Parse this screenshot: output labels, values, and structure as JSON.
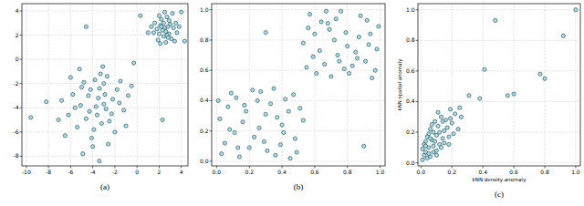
{
  "chart_data": [
    {
      "type": "scatter",
      "title": "(a)",
      "color": "#a8e0ea",
      "marker": "circle",
      "grid": true,
      "xlim": [
        -10.4,
        4.6
      ],
      "ylim": [
        -8.8,
        4.6
      ],
      "xticks": [
        -10,
        -8,
        -6,
        -4,
        -2,
        0,
        2,
        4
      ],
      "yticks": [
        -8,
        -6,
        -4,
        -2,
        0,
        2,
        4
      ],
      "x": [
        2.1,
        2.6,
        3.0,
        2.4,
        1.8,
        2.9,
        2.2,
        3.3,
        2.7,
        1.6,
        2.5,
        3.1,
        2.0,
        2.8,
        2.3,
        3.5,
        1.9,
        2.6,
        3.2,
        2.4,
        1.5,
        3.6,
        2.9,
        2.1,
        2.7,
        3.4,
        2.0,
        2.5,
        1.3,
        3.8,
        2.2,
        2.8,
        0.3,
        4.0,
        4.3,
        1.0,
        -3.5,
        -4.2,
        -2.8,
        -5.1,
        -3.0,
        -4.6,
        -2.2,
        -3.9,
        -1.8,
        -5.8,
        -3.3,
        -4.8,
        -2.5,
        -6.2,
        -1.2,
        -3.7,
        -4.1,
        -2.0,
        -6.8,
        -3.1,
        -5.4,
        -0.8,
        -4.4,
        -2.9,
        -3.6,
        -5.0,
        -1.5,
        -4.0,
        -2.6,
        -7.1,
        -3.8,
        -6.0,
        -1.0,
        -3.2,
        -4.9,
        -2.3,
        -5.6,
        -0.5,
        -3.4,
        -4.3,
        -2.7,
        -6.5,
        -1.6,
        -5.2,
        -3.0,
        -9.6,
        -4.6,
        2.3,
        -3.4,
        -0.3,
        -8.2
      ],
      "values": [
        2.8,
        2.3,
        2.9,
        1.9,
        2.5,
        2.1,
        3.3,
        2.6,
        3.5,
        3.0,
        2.6,
        1.7,
        2.1,
        2.7,
        2.4,
        3.0,
        1.6,
        1.4,
        3.8,
        3.0,
        2.2,
        2.2,
        3.2,
        1.3,
        2.0,
        1.5,
        3.6,
        3.9,
        2.7,
        2.7,
        2.7,
        1.8,
        3.6,
        3.9,
        1.5,
        2.2,
        -3.2,
        -2.5,
        -4.1,
        -3.8,
        -2.0,
        -4.9,
        -3.3,
        -5.8,
        -2.5,
        -2.9,
        -1.2,
        -1.9,
        -5.1,
        -4.6,
        -4.2,
        -3.9,
        -6.5,
        -6.0,
        -3.4,
        -0.6,
        -5.6,
        -3.0,
        -3.0,
        -2.9,
        -4.6,
        -2.3,
        -1.8,
        -7.2,
        -7.0,
        -5.0,
        -1.7,
        -1.5,
        -5.5,
        -5.3,
        -7.8,
        -4.5,
        -4.0,
        -2.2,
        -2.4,
        -4.3,
        -1.4,
        -6.3,
        -3.6,
        -0.8,
        -3.7,
        -4.8,
        2.7,
        -5.0,
        -8.4,
        -0.3,
        -3.5
      ]
    },
    {
      "type": "scatter",
      "title": "(b)",
      "color": "#a8e0ea",
      "marker": "circle",
      "grid": true,
      "xlim": [
        -0.03,
        1.03
      ],
      "ylim": [
        -0.03,
        1.04
      ],
      "xticks": [
        {
          "value": 0,
          "label": "0.0"
        },
        0.2,
        0.4,
        0.6,
        0.8,
        {
          "value": 1,
          "label": "1.0"
        }
      ],
      "yticks": [
        {
          "value": 0,
          "label": "0.0"
        },
        0.2,
        0.4,
        0.6,
        0.8,
        {
          "value": 1,
          "label": "1.0"
        }
      ],
      "x": [
        0.05,
        0.18,
        0.31,
        0.42,
        0.09,
        0.26,
        0.48,
        0.37,
        0.14,
        0.02,
        0.22,
        0.45,
        0.33,
        0.11,
        0.29,
        0.51,
        0.07,
        0.4,
        0.2,
        0.35,
        0.16,
        0.47,
        0.03,
        0.25,
        0.39,
        0.12,
        0.53,
        0.3,
        0.44,
        0.08,
        0.23,
        0.36,
        0.17,
        0.49,
        0.01,
        0.27,
        0.41,
        0.13,
        0.55,
        0.68,
        0.81,
        0.93,
        0.6,
        0.74,
        0.88,
        0.97,
        0.63,
        0.79,
        0.7,
        0.91,
        0.57,
        0.85,
        0.66,
        0.99,
        0.76,
        0.59,
        0.83,
        0.72,
        0.95,
        0.64,
        0.87,
        0.53,
        0.78,
        0.69,
        0.92,
        0.61,
        0.86,
        0.73,
        0.98,
        0.56,
        0.8,
        0.67,
        0.94,
        0.75,
        0.3,
        0.9
      ],
      "values": [
        0.12,
        0.33,
        0.07,
        0.41,
        0.45,
        0.22,
        0.15,
        0.29,
        0.03,
        0.28,
        0.47,
        0.02,
        0.38,
        0.19,
        0.13,
        0.35,
        0.36,
        0.24,
        0.09,
        0.48,
        0.26,
        0.44,
        0.05,
        0.4,
        0.11,
        0.42,
        0.27,
        0.31,
        0.33,
        0.21,
        0.16,
        0.04,
        0.37,
        0.06,
        0.4,
        0.46,
        0.19,
        0.09,
        0.62,
        0.91,
        0.58,
        0.77,
        0.84,
        0.7,
        0.96,
        0.6,
        0.73,
        0.85,
        0.56,
        0.66,
        0.97,
        0.72,
        0.64,
        0.89,
        0.99,
        0.69,
        0.63,
        0.8,
        0.55,
        0.92,
        0.82,
        0.78,
        0.61,
        0.87,
        0.93,
        0.58,
        0.68,
        0.94,
        0.74,
        0.88,
        0.76,
        0.99,
        0.84,
        0.66,
        0.85,
        0.1
      ]
    },
    {
      "type": "scatter",
      "title": "(c)",
      "x_label": "kNN density anomaly",
      "y_label": "kNN spatial anomaly",
      "color": "#a8e0ea",
      "marker": "circle",
      "grid": true,
      "xlim": [
        -0.02,
        1.03
      ],
      "ylim": [
        -0.02,
        1.04
      ],
      "xticks": [
        {
          "value": 0,
          "label": "0.0"
        },
        0.2,
        0.4,
        0.6,
        0.8,
        {
          "value": 1,
          "label": "1.0"
        }
      ],
      "yticks": [
        {
          "value": 0,
          "label": "0.0"
        },
        0.2,
        0.4,
        0.6,
        0.8,
        {
          "value": 1,
          "label": "1.0"
        }
      ],
      "x": [
        0.02,
        0.05,
        0.03,
        0.08,
        0.1,
        0.06,
        0.12,
        0.04,
        0.15,
        0.09,
        0.07,
        0.13,
        0.18,
        0.01,
        0.11,
        0.16,
        0.05,
        0.2,
        0.03,
        0.14,
        0.08,
        0.22,
        0.06,
        0.17,
        0.1,
        0.02,
        0.12,
        0.24,
        0.09,
        0.04,
        0.19,
        0.13,
        0.07,
        0.01,
        0.15,
        0.11,
        0.21,
        0.05,
        0.08,
        0.14,
        0.03,
        0.18,
        0.06,
        0.26,
        0.1,
        0.48,
        0.41,
        0.77,
        0.8,
        0.92,
        1.0,
        0.56,
        0.38,
        0.31,
        0.25,
        0.19,
        0.6
      ],
      "values": [
        0.05,
        0.1,
        0.14,
        0.07,
        0.18,
        0.22,
        0.12,
        0.03,
        0.21,
        0.27,
        0.15,
        0.3,
        0.17,
        0.09,
        0.24,
        0.28,
        0.19,
        0.26,
        0.07,
        0.16,
        0.11,
        0.32,
        0.04,
        0.23,
        0.08,
        0.12,
        0.2,
        0.22,
        0.14,
        0.17,
        0.29,
        0.1,
        0.25,
        0.02,
        0.13,
        0.33,
        0.19,
        0.06,
        0.2,
        0.27,
        0.11,
        0.12,
        0.16,
        0.3,
        0.05,
        0.93,
        0.61,
        0.58,
        0.55,
        0.83,
        1.0,
        0.44,
        0.42,
        0.44,
        0.36,
        0.35,
        0.45
      ]
    }
  ]
}
